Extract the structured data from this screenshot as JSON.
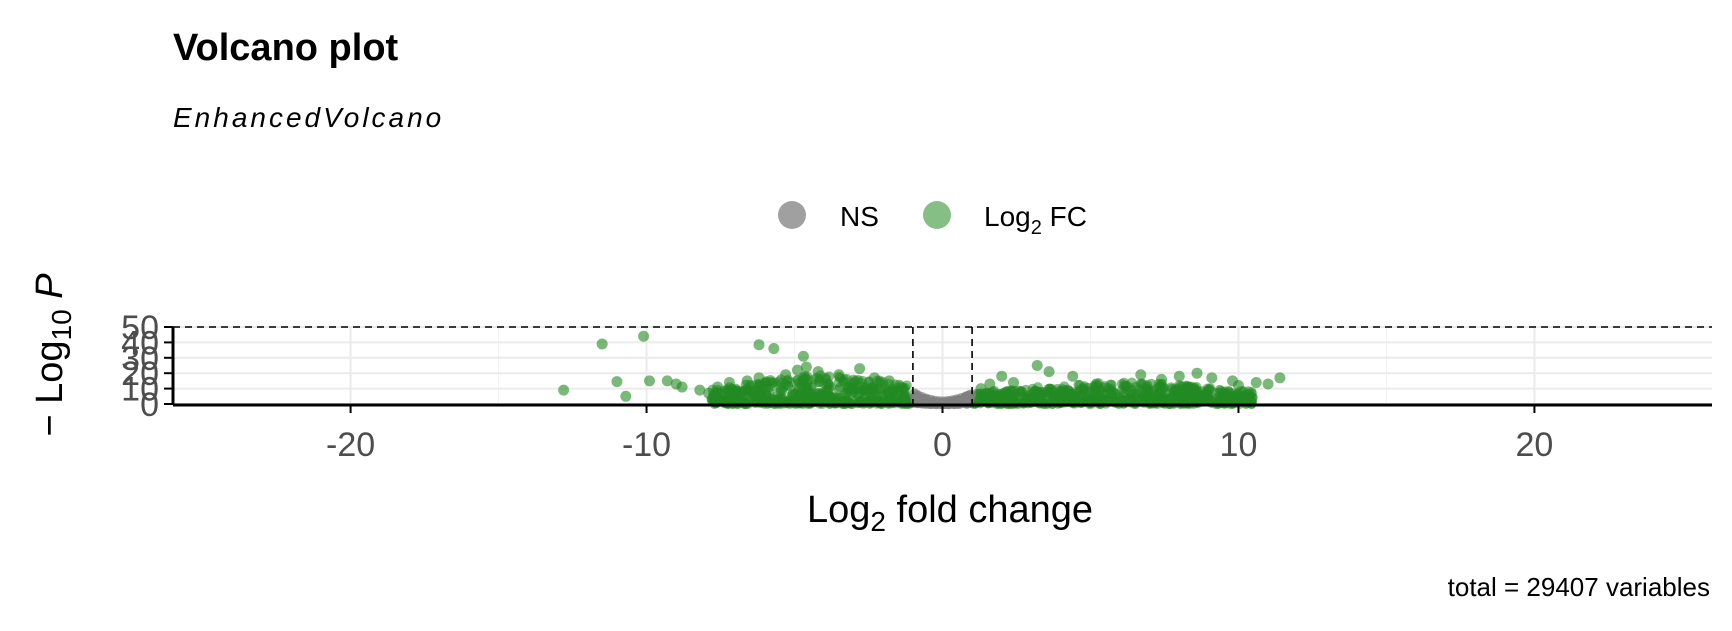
{
  "chart_data": {
    "type": "scatter",
    "title": "Volcano plot",
    "subtitle": "EnhancedVolcano",
    "xlabel": "Log2 fold change",
    "ylabel": "−Log10 P",
    "caption": "total = 29407 variables",
    "xlim": [
      -26,
      26
    ],
    "ylim": [
      0,
      50
    ],
    "xticks": [
      -20,
      -10,
      0,
      10,
      20
    ],
    "xtick_labels": [
      "-20",
      "-10",
      "0",
      "10",
      "20"
    ],
    "yticks": [
      0,
      10,
      20,
      30,
      40,
      50
    ],
    "ytick_labels": [
      "0",
      "10",
      "20",
      "30",
      "40",
      "50"
    ],
    "grid": true,
    "legend_position": "top",
    "cutoffs": {
      "log2fc": [
        -1,
        1
      ],
      "p_line_y": 50
    },
    "colors": {
      "NS": "#808080",
      "Log2 FC": "#228B22"
    },
    "series": [
      {
        "name": "NS",
        "color": "#808080",
        "points": [
          [
            -0.95,
            6.5
          ],
          [
            -0.85,
            5.5
          ],
          [
            -0.7,
            4.2
          ],
          [
            -0.55,
            3.2
          ],
          [
            -0.4,
            2.4
          ],
          [
            -0.25,
            1.8
          ],
          [
            -0.1,
            1.5
          ],
          [
            0.05,
            1.4
          ],
          [
            0.2,
            1.6
          ],
          [
            0.35,
            2.1
          ],
          [
            0.5,
            2.8
          ],
          [
            0.65,
            3.6
          ],
          [
            0.8,
            4.6
          ],
          [
            0.95,
            5.8
          ],
          [
            -0.9,
            3.0
          ],
          [
            -0.7,
            2.0
          ],
          [
            -0.5,
            1.2
          ],
          [
            -0.3,
            0.8
          ],
          [
            -0.1,
            0.5
          ],
          [
            0.1,
            0.5
          ],
          [
            0.3,
            0.8
          ],
          [
            0.5,
            1.2
          ],
          [
            0.7,
            2.0
          ],
          [
            0.9,
            3.0
          ],
          [
            -0.8,
            1.0
          ],
          [
            -0.6,
            0.6
          ],
          [
            0.6,
            0.6
          ],
          [
            0.8,
            1.0
          ],
          [
            -0.4,
            0.3
          ],
          [
            -0.2,
            0.2
          ],
          [
            0.0,
            0.2
          ],
          [
            0.2,
            0.2
          ],
          [
            0.4,
            0.3
          ]
        ]
      },
      {
        "name": "Log2 FC",
        "color": "#228B22",
        "points": [
          [
            -10.1,
            44
          ],
          [
            -11.5,
            39
          ],
          [
            -6.2,
            38.5
          ],
          [
            -5.7,
            36
          ],
          [
            -4.7,
            31
          ],
          [
            -12.8,
            9
          ],
          [
            -10.7,
            5
          ],
          [
            -11.0,
            14.5
          ],
          [
            -9.9,
            15
          ],
          [
            -9.3,
            15
          ],
          [
            -9.0,
            13
          ],
          [
            -8.8,
            11
          ],
          [
            -8.2,
            9
          ],
          [
            -7.9,
            7
          ],
          [
            -7.6,
            11
          ],
          [
            -7.2,
            14
          ],
          [
            -6.6,
            15
          ],
          [
            -6.2,
            17
          ],
          [
            -5.3,
            19
          ],
          [
            -4.9,
            22
          ],
          [
            -4.6,
            24
          ],
          [
            -4.2,
            21
          ],
          [
            -3.5,
            19
          ],
          [
            -2.8,
            23
          ],
          [
            -2.3,
            17
          ],
          [
            -1.8,
            15
          ],
          [
            -1.4,
            11
          ],
          [
            3.2,
            25
          ],
          [
            3.6,
            21
          ],
          [
            4.4,
            18
          ],
          [
            5.2,
            13
          ],
          [
            6.7,
            19
          ],
          [
            7.4,
            16
          ],
          [
            8.0,
            18
          ],
          [
            8.6,
            20
          ],
          [
            9.1,
            17
          ],
          [
            9.8,
            15
          ],
          [
            10.0,
            12
          ],
          [
            10.6,
            14
          ],
          [
            11.0,
            13
          ],
          [
            11.4,
            17
          ],
          [
            10.1,
            8
          ],
          [
            9.5,
            6
          ],
          [
            8.9,
            5
          ],
          [
            2.4,
            14
          ],
          [
            1.6,
            13
          ],
          [
            1.3,
            10
          ],
          [
            2.0,
            18
          ]
        ],
        "density_band": {
          "left": {
            "x_from": -7.8,
            "x_to": -1.05,
            "y_min": 0,
            "y_max_peak": 19
          },
          "right": {
            "x_from": 1.05,
            "x_to": 10.5,
            "y_min": 0,
            "y_max_peak": 14
          }
        }
      }
    ]
  },
  "legend": {
    "items": [
      {
        "label": "NS",
        "color": "#808080"
      },
      {
        "label": "Log2 FC",
        "color": "#228B22"
      }
    ]
  }
}
